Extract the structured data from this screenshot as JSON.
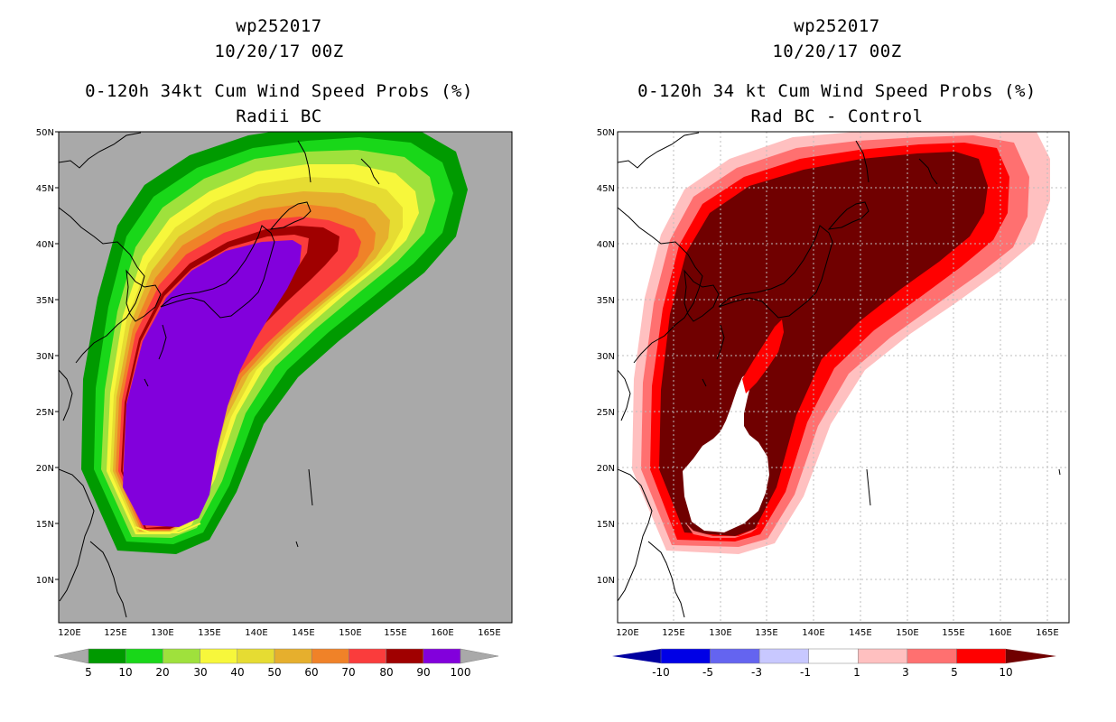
{
  "left": {
    "title1": "wp252017",
    "title2": "10/20/17 00Z",
    "title3": "0-120h 34kt Cum Wind Speed Probs (%)",
    "title4": "Radii BC",
    "lat_labels": [
      "50N",
      "45N",
      "40N",
      "35N",
      "30N",
      "25N",
      "20N",
      "15N",
      "10N"
    ],
    "lon_labels": [
      "120E",
      "125E",
      "130E",
      "135E",
      "140E",
      "145E",
      "150E",
      "155E",
      "160E",
      "165E"
    ],
    "colorbar": {
      "labels": [
        "5",
        "10",
        "20",
        "30",
        "40",
        "50",
        "60",
        "70",
        "80",
        "90",
        "100"
      ],
      "colors": [
        "#009a00",
        "#19d719",
        "#9fe13c",
        "#f7f73b",
        "#e6dc32",
        "#e6af2d",
        "#f08228",
        "#fa3c3c",
        "#a00000",
        "#8200dc"
      ]
    }
  },
  "right": {
    "title1": "wp252017",
    "title2": "10/20/17 00Z",
    "title3": "0-120h 34 kt Cum Wind Speed Probs (%)",
    "title4": "Rad BC - Control",
    "lat_labels": [
      "50N",
      "45N",
      "40N",
      "35N",
      "30N",
      "25N",
      "20N",
      "15N",
      "10N"
    ],
    "lon_labels": [
      "120E",
      "125E",
      "130E",
      "135E",
      "140E",
      "145E",
      "150E",
      "155E",
      "160E",
      "165E"
    ],
    "colorbar": {
      "labels": [
        "-10",
        "-5",
        "-3",
        "-1",
        "1",
        "3",
        "5",
        "10"
      ],
      "colors": [
        "#0000a0",
        "#0000e6",
        "#6464f0",
        "#c8c8ff",
        "#ffffff",
        "#ffc0c0",
        "#ff7070",
        "#ff0000",
        "#700000"
      ]
    }
  }
}
